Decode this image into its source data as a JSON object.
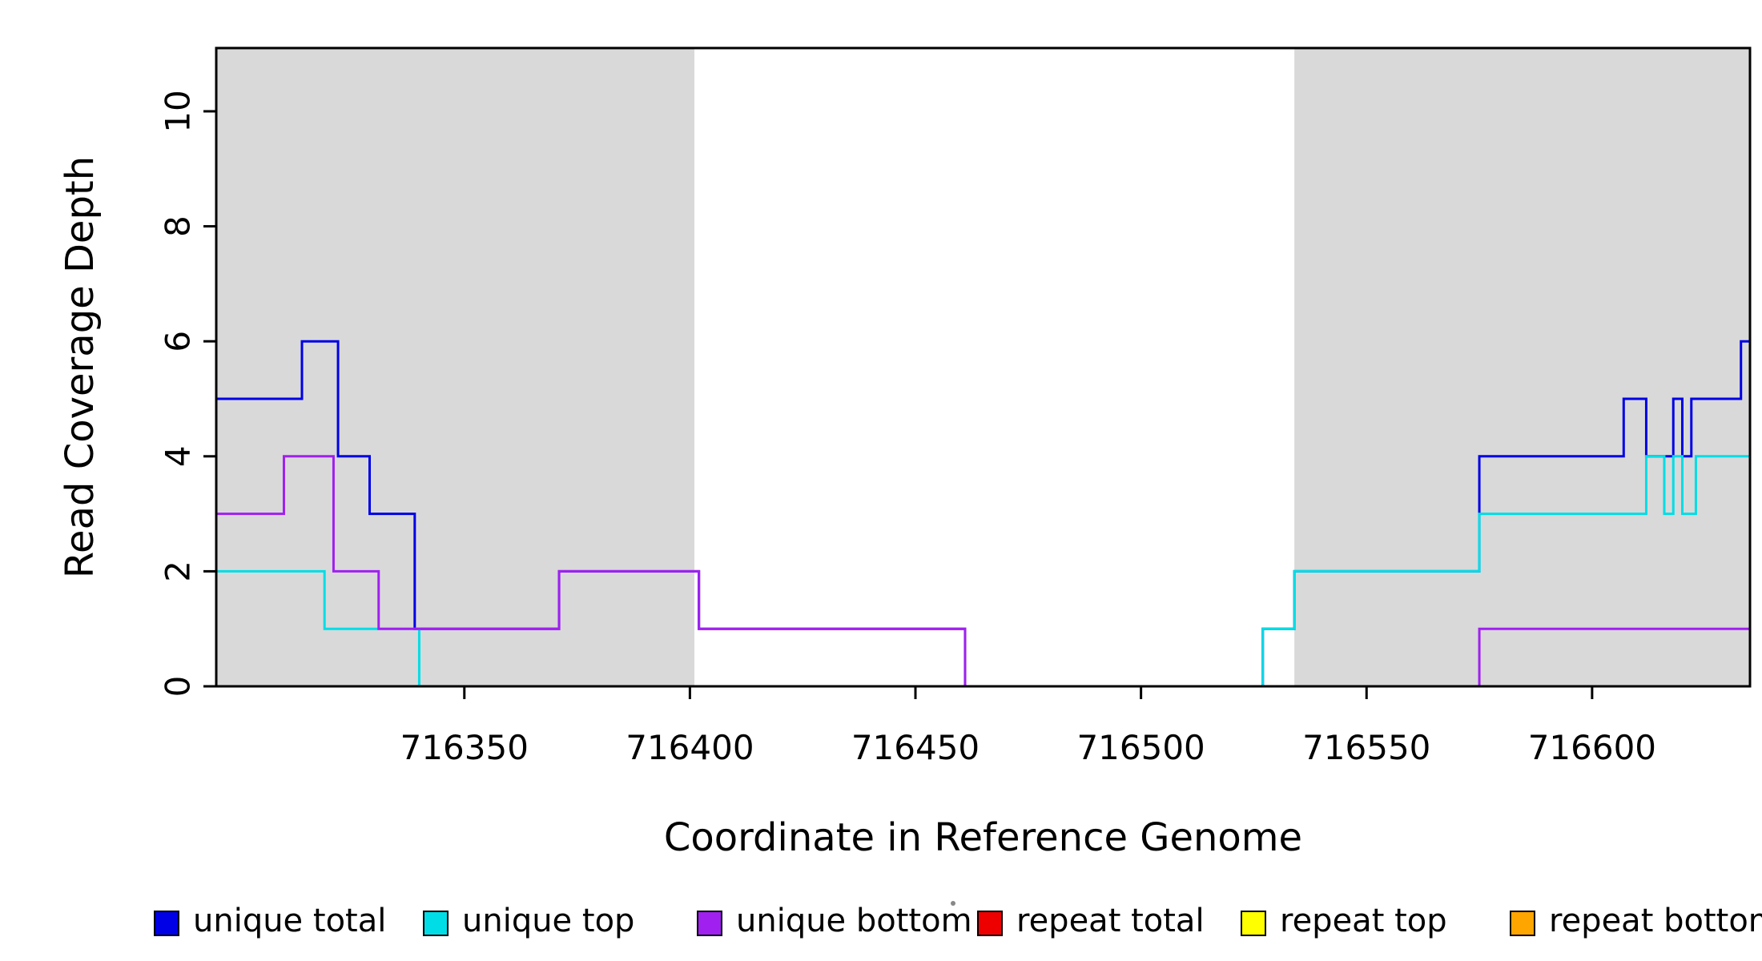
{
  "chart_data": {
    "type": "line",
    "step": true,
    "title": "",
    "xlabel": "Coordinate in Reference Genome",
    "ylabel": "Read Coverage Depth",
    "xlim": [
      716295,
      716635
    ],
    "ylim": [
      0,
      11.1
    ],
    "x_ticks": [
      716350,
      716400,
      716450,
      716500,
      716550,
      716600
    ],
    "y_ticks": [
      0,
      2,
      4,
      6,
      8,
      10
    ],
    "grid": false,
    "shade_color": "#d9d9d9",
    "shaded_regions": [
      {
        "x0": 716295,
        "x1": 716401
      },
      {
        "x0": 716534,
        "x1": 716635
      }
    ],
    "series": [
      {
        "name": "unique total",
        "color": "#0000e6",
        "points": [
          [
            716295,
            5
          ],
          [
            716314,
            6
          ],
          [
            716322,
            4
          ],
          [
            716329,
            3
          ],
          [
            716339,
            1
          ],
          [
            716371,
            2
          ],
          [
            716402,
            1
          ],
          [
            716461,
            0
          ],
          [
            716527,
            1
          ],
          [
            716534,
            2
          ],
          [
            716575,
            4
          ],
          [
            716607,
            5
          ],
          [
            716612,
            4
          ],
          [
            716618,
            5
          ],
          [
            716620,
            4
          ],
          [
            716622,
            5
          ],
          [
            716633,
            6
          ]
        ]
      },
      {
        "name": "unique top",
        "color": "#00dde6",
        "points": [
          [
            716295,
            2
          ],
          [
            716319,
            1
          ],
          [
            716340,
            0
          ],
          [
            716527,
            1
          ],
          [
            716534,
            2
          ],
          [
            716575,
            3
          ],
          [
            716612,
            4
          ],
          [
            716616,
            3
          ],
          [
            716618,
            4
          ],
          [
            716620,
            3
          ],
          [
            716623,
            4
          ]
        ]
      },
      {
        "name": "unique bottom",
        "color": "#a020f0",
        "points": [
          [
            716295,
            3
          ],
          [
            716310,
            4
          ],
          [
            716321,
            2
          ],
          [
            716331,
            1
          ],
          [
            716371,
            2
          ],
          [
            716402,
            1
          ],
          [
            716461,
            0
          ],
          [
            716575,
            1
          ]
        ]
      },
      {
        "name": "repeat total",
        "color": "#ee0000",
        "points": [
          [
            716295,
            0
          ]
        ]
      },
      {
        "name": "repeat top",
        "color": "#ffff00",
        "points": [
          [
            716295,
            0
          ]
        ]
      },
      {
        "name": "repeat bottom",
        "color": "#ffa500",
        "points": [
          [
            716295,
            0
          ]
        ]
      }
    ],
    "legend": {
      "position": "bottom",
      "entries": [
        {
          "label": "unique total",
          "color": "#0000e6"
        },
        {
          "label": "unique top",
          "color": "#00dde6"
        },
        {
          "label": "unique bottom",
          "color": "#a020f0"
        },
        {
          "label": "repeat total",
          "color": "#ee0000"
        },
        {
          "label": "repeat top",
          "color": "#ffff00"
        },
        {
          "label": "repeat bottom",
          "color": "#ffa500"
        }
      ]
    }
  }
}
